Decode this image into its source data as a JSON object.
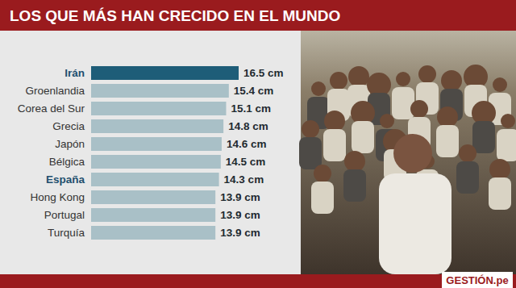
{
  "chart_data": {
    "type": "bar",
    "orientation": "horizontal",
    "title": "LOS QUE MÁS HAN CRECIDO EN EL MUNDO",
    "categories": [
      "Irán",
      "Groenlandia",
      "Corea del Sur",
      "Grecia",
      "Japón",
      "Bélgica",
      "España",
      "Hong Kong",
      "Portugal",
      "Turquía"
    ],
    "values": [
      16.5,
      15.4,
      15.1,
      14.8,
      14.6,
      14.5,
      14.3,
      13.9,
      13.9,
      13.9
    ],
    "value_labels": [
      "16.5 cm",
      "15.4 cm",
      "15.1 cm",
      "14.8 cm",
      "14.6 cm",
      "14.5 cm",
      "14.3 cm",
      "13.9 cm",
      "13.9 cm",
      "13.9 cm"
    ],
    "colors": [
      "#1e5d78",
      "#a9c0c7",
      "#a9c0c7",
      "#a9c0c7",
      "#a9c0c7",
      "#a9c0c7",
      "#a9c0c7",
      "#a9c0c7",
      "#a9c0c7",
      "#a9c0c7"
    ],
    "xlim": [
      0,
      16.5
    ],
    "data_labels": true,
    "tick_labels": "y",
    "grid": false,
    "source": "GESTIÓN.pe"
  }
}
